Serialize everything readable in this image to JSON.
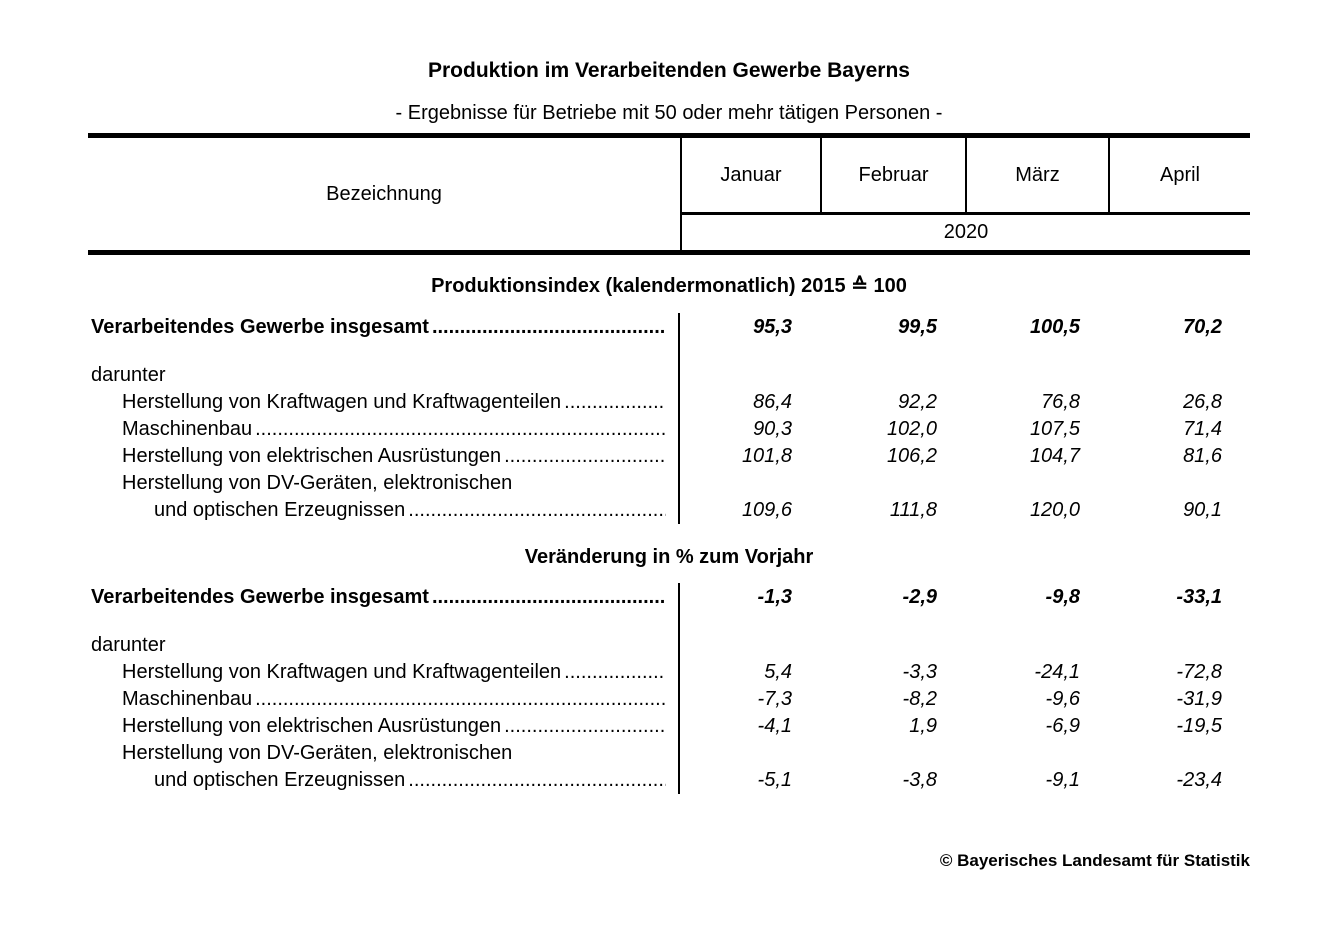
{
  "title": "Produktion im Verarbeitenden Gewerbe Bayerns",
  "subtitle": "- Ergebnisse für Betriebe mit 50 oder mehr tätigen Personen -",
  "header": {
    "label_column": "Bezeichnung",
    "months": [
      "Januar",
      "Februar",
      "März",
      "April"
    ],
    "year": "2020"
  },
  "leader_dots": "......................................................................................................................................................",
  "sections": [
    {
      "heading": "Produktionsindex (kalendermonatlich) 2015 ≙ 100",
      "rows": [
        {
          "label": "Verarbeitendes Gewerbe insgesamt",
          "leader": true,
          "bold": true,
          "indent": 0,
          "first": true,
          "values": [
            "95,3",
            "99,5",
            "100,5",
            "70,2"
          ]
        },
        {
          "spacer": true,
          "label": "",
          "values": []
        },
        {
          "label": "darunter",
          "indent": 0,
          "values": []
        },
        {
          "label": "Herstellung von Kraftwagen und Kraftwagenteilen",
          "leader": true,
          "indent": 1,
          "values": [
            "86,4",
            "92,2",
            "76,8",
            "26,8"
          ]
        },
        {
          "label": "Maschinenbau",
          "leader": true,
          "indent": 1,
          "values": [
            "90,3",
            "102,0",
            "107,5",
            "71,4"
          ]
        },
        {
          "label": "Herstellung von elektrischen Ausrüstungen",
          "leader": true,
          "indent": 1,
          "values": [
            "101,8",
            "106,2",
            "104,7",
            "81,6"
          ]
        },
        {
          "label": "Herstellung von DV-Geräten, elektronischen",
          "indent": 1,
          "values": []
        },
        {
          "label": "und optischen Erzeugnissen",
          "leader": true,
          "indent": 2,
          "values": [
            "109,6",
            "111,8",
            "120,0",
            "90,1"
          ]
        }
      ]
    },
    {
      "heading": "Veränderung in % zum Vorjahr",
      "rows": [
        {
          "label": "Verarbeitendes Gewerbe insgesamt",
          "leader": true,
          "bold": true,
          "indent": 0,
          "first": true,
          "values": [
            "-1,3",
            "-2,9",
            "-9,8",
            "-33,1"
          ]
        },
        {
          "spacer": true,
          "label": "",
          "values": []
        },
        {
          "label": "darunter",
          "indent": 0,
          "values": []
        },
        {
          "label": "Herstellung von Kraftwagen und Kraftwagenteilen",
          "leader": true,
          "indent": 1,
          "values": [
            "5,4",
            "-3,3",
            "-24,1",
            "-72,8"
          ]
        },
        {
          "label": "Maschinenbau",
          "leader": true,
          "indent": 1,
          "values": [
            "-7,3",
            "-8,2",
            "-9,6",
            "-31,9"
          ]
        },
        {
          "label": "Herstellung von elektrischen Ausrüstungen",
          "leader": true,
          "indent": 1,
          "values": [
            "-4,1",
            "1,9",
            "-6,9",
            "-19,5"
          ]
        },
        {
          "label": "Herstellung von DV-Geräten, elektronischen",
          "indent": 1,
          "values": []
        },
        {
          "label": "und optischen Erzeugnissen",
          "leader": true,
          "indent": 2,
          "values": [
            "-5,1",
            "-3,8",
            "-9,1",
            "-23,4"
          ]
        }
      ]
    }
  ],
  "footer": "© Bayerisches Landesamt für Statistik"
}
